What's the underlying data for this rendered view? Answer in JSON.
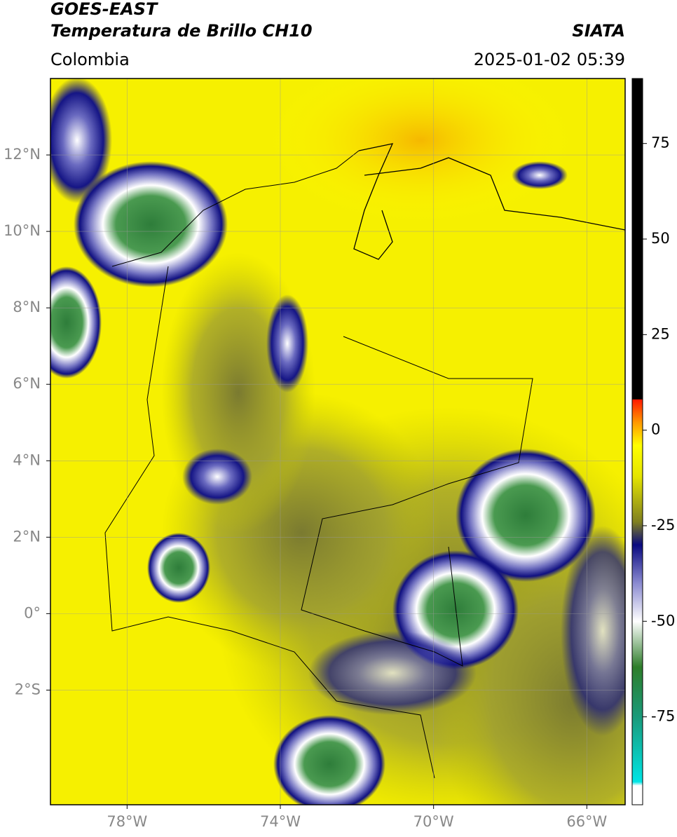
{
  "header": {
    "source": "GOES-EAST",
    "product": "Temperatura de Brillo CH10",
    "agency": "SIATA",
    "region": "Colombia",
    "datetime": "2025-01-02 05:39"
  },
  "map": {
    "xlim": [
      -80,
      -65
    ],
    "ylim": [
      -5,
      14
    ],
    "grid": true,
    "xticks": [
      {
        "value": -78,
        "label": "78°W"
      },
      {
        "value": -74,
        "label": "74°W"
      },
      {
        "value": -70,
        "label": "70°W"
      },
      {
        "value": -66,
        "label": "66°W"
      }
    ],
    "yticks": [
      {
        "value": 12,
        "label": "12°N"
      },
      {
        "value": 10,
        "label": "10°N"
      },
      {
        "value": 8,
        "label": "8°N"
      },
      {
        "value": 6,
        "label": "6°N"
      },
      {
        "value": 4,
        "label": "4°N"
      },
      {
        "value": 2,
        "label": "2°N"
      },
      {
        "value": 0,
        "label": "0°"
      },
      {
        "value": -2,
        "label": "2°S"
      }
    ]
  },
  "colorbar": {
    "lim": [
      -98,
      92
    ],
    "ticks": [
      75,
      50,
      25,
      0,
      -25,
      -50,
      -75
    ],
    "stops": [
      {
        "value": -98,
        "color": "#ffffff"
      },
      {
        "value": -93,
        "color": "#ffffff"
      },
      {
        "value": -92,
        "color": "#00e5e5"
      },
      {
        "value": -75,
        "color": "#1a9a7a"
      },
      {
        "value": -62,
        "color": "#2e7d2a"
      },
      {
        "value": -50,
        "color": "#ffffff"
      },
      {
        "value": -40,
        "color": "#8a8ad0"
      },
      {
        "value": -30,
        "color": "#0a0a80"
      },
      {
        "value": -24,
        "color": "#808020"
      },
      {
        "value": -12,
        "color": "#e5e500"
      },
      {
        "value": -4,
        "color": "#ffff00"
      },
      {
        "value": 2,
        "color": "#ff9900"
      },
      {
        "value": 8,
        "color": "#ff1a00"
      },
      {
        "value": 8.1,
        "color": "#000000"
      },
      {
        "value": 92,
        "color": "#000000"
      }
    ]
  }
}
